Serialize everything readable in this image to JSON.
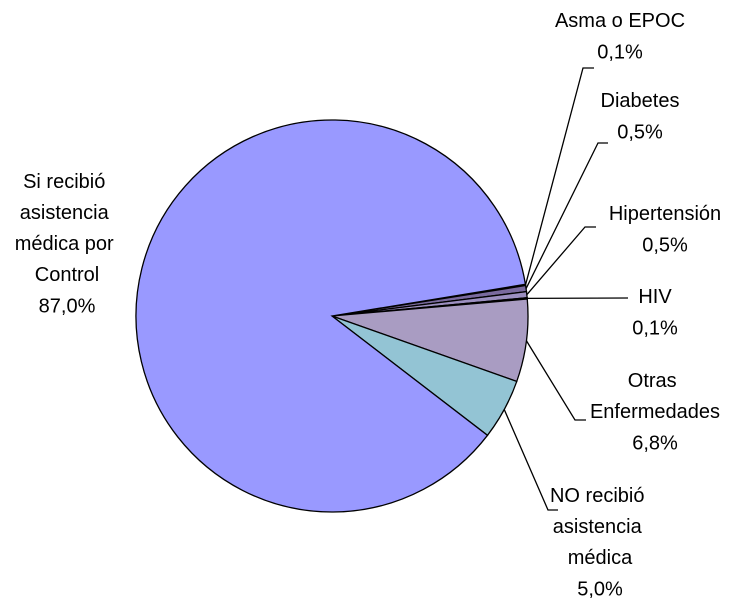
{
  "chart_data": {
    "type": "pie",
    "categories": [
      "Asma o EPOC",
      "Diabetes",
      "Hipertensión",
      "HIV",
      "Otras Enfermedades",
      "NO recibió asistencia médica",
      "Si recibió asistencia médica por Control"
    ],
    "values": [
      0.1,
      0.5,
      0.5,
      0.1,
      6.8,
      5.0,
      87.0
    ],
    "value_labels": [
      "0,1%",
      "0,5%",
      "0,5%",
      "0,1%",
      "6,8%",
      "5,0%",
      "87,0%"
    ],
    "colors": [
      "#5a5a9c",
      "#7a6a9e",
      "#9c8fc0",
      "#c8c8e8",
      "#a99cc2",
      "#93c4d4",
      "#9999ff"
    ]
  }
}
